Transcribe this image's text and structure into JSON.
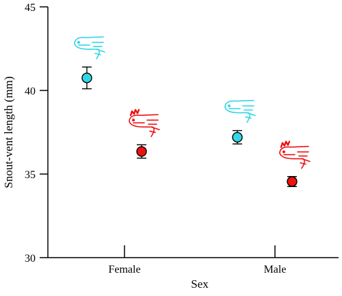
{
  "chart_data": {
    "type": "scatter",
    "title": "",
    "xlabel": "Sex",
    "ylabel": "Snout-vent length (mm)",
    "categories": [
      "Female",
      "Male"
    ],
    "ylim": [
      30,
      45
    ],
    "yticks": [
      30,
      35,
      40,
      45
    ],
    "grid": false,
    "legend": "none",
    "series": [
      {
        "color": "#33d6e6",
        "values": [
          40.75,
          37.2
        ],
        "err_low": [
          40.1,
          36.8
        ],
        "err_high": [
          41.4,
          37.6
        ],
        "icon": "cyan-axolotl-outline-icon"
      },
      {
        "color": "#ee1111",
        "values": [
          36.35,
          34.55
        ],
        "err_low": [
          35.95,
          34.25
        ],
        "err_high": [
          36.75,
          34.85
        ],
        "icon": "red-axolotl-with-gills-icon"
      }
    ]
  }
}
